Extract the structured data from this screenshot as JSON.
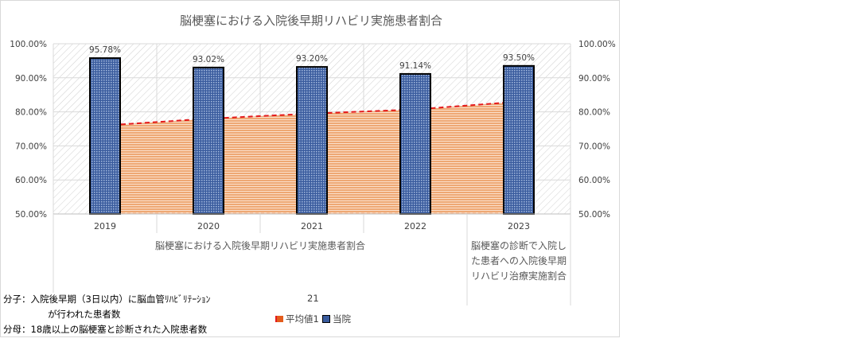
{
  "colors": {
    "average": "#e45c1c",
    "average_line": "#e41a1c",
    "hospital": "#4a6fb0",
    "hospital_border": "#000000"
  },
  "chart_data": {
    "type": "bar",
    "title": "脳梗塞における入院後早期リハビリ実施患者割合",
    "categories": [
      "2019",
      "2020",
      "2021",
      "2022",
      "2023"
    ],
    "category_groups": [
      {
        "label": "脳梗塞における入院後早期リハビリ実施患者割合",
        "lines": [
          "脳梗塞における入院後早期リハビリ実施患者割合"
        ],
        "categories": [
          "2019",
          "2020",
          "2021",
          "2022"
        ]
      },
      {
        "label": "脳梗塞の診断で入院した患者への入院後早期リハビリ治療実施割合",
        "lines": [
          "脳梗塞の診断で入院し",
          "た患者への入院後早期",
          "リハビリ治療実施割合"
        ],
        "categories": [
          "2023"
        ]
      }
    ],
    "series": [
      {
        "name": "平均値1",
        "type": "area",
        "values": [
          76.0,
          78.0,
          79.5,
          80.7,
          83.0
        ]
      },
      {
        "name": "当院",
        "type": "bar",
        "values": [
          95.78,
          93.02,
          93.2,
          91.14,
          93.5
        ]
      }
    ],
    "data_labels": [
      "95.78%",
      "93.02%",
      "93.20%",
      "91.14%",
      "93.50%"
    ],
    "ylim": [
      50,
      100
    ],
    "y_ticks": [
      50,
      60,
      70,
      80,
      90,
      100
    ],
    "y_tick_labels": [
      "50.00%",
      "60.00%",
      "70.00%",
      "80.00%",
      "90.00%",
      "100.00%"
    ],
    "secondary_y_axis": true,
    "grid": true,
    "legend_position": "bottom"
  },
  "notes": {
    "numerator_label": "分子：",
    "numerator_line1": "入院後早期（3日以内）に脳血管ﾘﾊﾋﾞﾘﾃｰｼｮﾝ",
    "numerator_line2": "が行われた患者数",
    "denominator_label": "分母：",
    "denominator_text": "18歳以上の脳梗塞と診断された入院患者数",
    "page_number": "21"
  },
  "legend": {
    "average": "平均値1",
    "hospital": "当院"
  }
}
